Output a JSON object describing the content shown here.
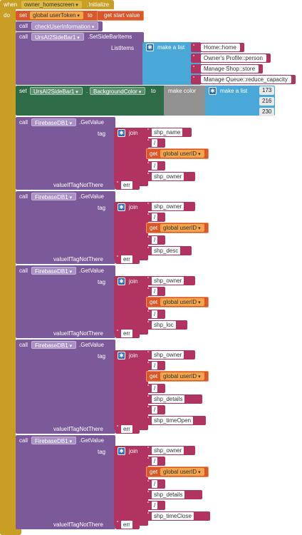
{
  "event": {
    "when": "when",
    "component": "owner_homescreen",
    "method": ".Initialize",
    "do": "do"
  },
  "set_token": {
    "set": "set",
    "var": "global userToken",
    "to": "to",
    "proc": "get start value"
  },
  "call1": {
    "call": "call",
    "proc": "checkUserInformation"
  },
  "sidebar": {
    "call": "call",
    "component": "UrsAI2SideBar1",
    "method": ".SetSideBarItems",
    "param": "ListItems",
    "make_list": "make a list",
    "items": [
      "Home::home",
      "Owner's Profile::person",
      "Manage Shop::store",
      "Manage Queue::reduce_capacity"
    ]
  },
  "bg": {
    "set": "set",
    "component": "UrsAI2SideBar1",
    "dot": ".",
    "prop": "BackgroundColor",
    "to": "to",
    "make_color": "make color",
    "make_list": "make a list",
    "values": [
      "173",
      "216",
      "230"
    ]
  },
  "getvalue_blocks": [
    {
      "call": "call",
      "component": "FirebaseDB1",
      "method": ".GetValue",
      "tag": "tag",
      "join": "join",
      "get": "get",
      "var": "global userID",
      "strings": [
        "shp_name",
        "/",
        "/",
        "shp_owner"
      ],
      "vitnt": "valueIfTagNotThere",
      "err": "err"
    },
    {
      "call": "call",
      "component": "FirebaseDB1",
      "method": ".GetValue",
      "tag": "tag",
      "join": "join",
      "get": "get",
      "var": "global userID",
      "strings": [
        "shp_owner",
        "/",
        "/",
        "shp_desc"
      ],
      "vitnt": "valueIfTagNotThere",
      "err": "err"
    },
    {
      "call": "call",
      "component": "FirebaseDB1",
      "method": ".GetValue",
      "tag": "tag",
      "join": "join",
      "get": "get",
      "var": "global userID",
      "strings": [
        "shp_owner",
        "/",
        "/",
        "shp_loc"
      ],
      "vitnt": "valueIfTagNotThere",
      "err": "err"
    },
    {
      "call": "call",
      "component": "FirebaseDB1",
      "method": ".GetValue",
      "tag": "tag",
      "join": "join",
      "get": "get",
      "var": "global userID",
      "strings": [
        "shp_owner",
        "/",
        "/",
        "shp_details",
        "/",
        "shp_timeOpen"
      ],
      "vitnt": "valueIfTagNotThere",
      "err": "err"
    },
    {
      "call": "call",
      "component": "FirebaseDB1",
      "method": ".GetValue",
      "tag": "tag",
      "join": "join",
      "get": "get",
      "var": "global userID",
      "strings": [
        "shp_owner",
        "/",
        "/",
        "shp_details",
        "/",
        "shp_timeClose"
      ],
      "vitnt": "valueIfTagNotThere",
      "err": "err"
    }
  ]
}
